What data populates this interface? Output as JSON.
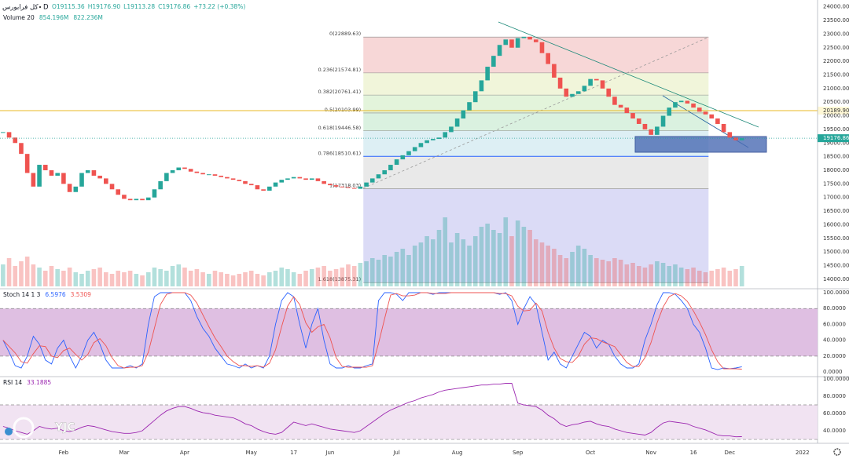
{
  "header": {
    "symbol": "کل فرابورس",
    "interval": "D",
    "ohlc": [
      "O19115.36",
      "H19176.90",
      "L19113.28",
      "C19176.86",
      "+73.22 (+0.38%)"
    ],
    "watermark": "YJC"
  },
  "chart_data": [
    {
      "type": "candlestick",
      "up_color": "#26a69a",
      "down_color": "#ef5350",
      "values": [
        19400,
        19200,
        19000,
        18600,
        17900,
        17400,
        18200,
        18000,
        17800,
        17900,
        17500,
        17200,
        17400,
        17900,
        18000,
        17800,
        17700,
        17500,
        17300,
        17100,
        16950,
        16900,
        16950,
        16900,
        17000,
        17300,
        17600,
        17900,
        18000,
        18100,
        18050,
        17950,
        17900,
        17850,
        17850,
        17800,
        17750,
        17700,
        17650,
        17600,
        17500,
        17450,
        17300,
        17250,
        17400,
        17550,
        17650,
        17700,
        17750,
        17700,
        17650,
        17700,
        17600,
        17500,
        17450,
        17400,
        17380,
        17350,
        17320,
        17400,
        17550,
        17700,
        17850,
        18000,
        18200,
        18400,
        18550,
        18700,
        18850,
        19000,
        19100,
        19150,
        19200,
        19400,
        19600,
        19900,
        20200,
        20500,
        20900,
        21300,
        21800,
        22200,
        22600,
        22800,
        22500,
        22850,
        22900,
        22800,
        22700,
        22300,
        21900,
        21400,
        21000,
        20700,
        20800,
        20900,
        21100,
        21350,
        21300,
        21000,
        20700,
        20400,
        20300,
        20100,
        19900,
        19700,
        19500,
        19300,
        19600,
        20000,
        20300,
        20500,
        20550,
        20450,
        20300,
        20150,
        20050,
        19900,
        19700,
        19400,
        19200,
        19100,
        19176.86
      ],
      "last_price_label": "19176.86",
      "xlim": [
        -0.5,
        134.5
      ],
      "xticks": [
        {
          "value": 10,
          "label": "Feb"
        },
        {
          "value": 20,
          "label": "Mar"
        },
        {
          "value": 30,
          "label": "Apr"
        },
        {
          "value": 41,
          "label": "May"
        },
        {
          "value": 48,
          "label": "17"
        },
        {
          "value": 54,
          "label": "Jun"
        },
        {
          "value": 65,
          "label": "Jul"
        },
        {
          "value": 75,
          "label": "Aug"
        },
        {
          "value": 85,
          "label": "Sep"
        },
        {
          "value": 97,
          "label": "Oct"
        },
        {
          "value": 107,
          "label": "Nov"
        },
        {
          "value": 114,
          "label": "16"
        },
        {
          "value": 120,
          "label": "Dec"
        },
        {
          "value": 132,
          "label": "2022"
        }
      ],
      "ylim": [
        13650,
        24250
      ],
      "yticks": [
        {
          "value": 14000,
          "label": "14000.00"
        },
        {
          "value": 14500,
          "label": "14500.00"
        },
        {
          "value": 15000,
          "label": "15000.00"
        },
        {
          "value": 15500,
          "label": "15500.00"
        },
        {
          "value": 16000,
          "label": "16000.00"
        },
        {
          "value": 16500,
          "label": "16500.00"
        },
        {
          "value": 17000,
          "label": "17000.00"
        },
        {
          "value": 17500,
          "label": "17500.00"
        },
        {
          "value": 18000,
          "label": "18000.00"
        },
        {
          "value": 18500,
          "label": "18500.00"
        },
        {
          "value": 19000,
          "label": "19000.00"
        },
        {
          "value": 19500,
          "label": "19500.00"
        },
        {
          "value": 20000,
          "label": "20000.00"
        },
        {
          "value": 20500,
          "label": "20500.00"
        },
        {
          "value": 21000,
          "label": "21000.00"
        },
        {
          "value": 21500,
          "label": "21500.00"
        },
        {
          "value": 22000,
          "label": "22000.00"
        },
        {
          "value": 22500,
          "label": "22500.00"
        },
        {
          "value": 23000,
          "label": "23000.00"
        },
        {
          "value": 23500,
          "label": "23500.00"
        },
        {
          "value": 24000,
          "label": "24000.00"
        }
      ],
      "price_line": {
        "value": 20189.9,
        "label": "20189.90",
        "color": "#e8b923"
      },
      "fib_levels": [
        {
          "value": 22889.63,
          "label": "0(22889.63)",
          "color": "#f4c9c9"
        },
        {
          "value": 21574.81,
          "label": "0.236(21574.81)",
          "color": "#ecf2cd"
        },
        {
          "value": 20761.41,
          "label": "0.382(20761.41)",
          "color": "#d9f0cf"
        },
        {
          "value": 20103.99,
          "label": "0.5(20103.99)",
          "color": "#cdecd6"
        },
        {
          "value": 19446.58,
          "label": "0.618(19446.58)",
          "color": "#d2e9f0"
        },
        {
          "value": 18510.61,
          "label": "0.786(18510.61)",
          "color": "#e2e2e2"
        },
        {
          "value": 17318.03,
          "label": "1(17318.03)",
          "color": "#cfcff3"
        },
        {
          "value": 13875.31,
          "label": "1.618(13875.31)",
          "color": "#cfcff3"
        }
      ],
      "volume": {
        "name": "Volume 20",
        "legend": [
          "854.196M",
          "822.236M"
        ],
        "ylim": [
          0,
          3000
        ],
        "values": [
          700,
          900,
          650,
          800,
          950,
          700,
          600,
          500,
          650,
          550,
          500,
          600,
          450,
          400,
          500,
          550,
          600,
          450,
          400,
          500,
          450,
          500,
          400,
          350,
          450,
          600,
          550,
          500,
          650,
          700,
          600,
          500,
          550,
          450,
          400,
          500,
          450,
          400,
          350,
          400,
          450,
          500,
          400,
          350,
          450,
          500,
          600,
          550,
          450,
          400,
          500,
          550,
          600,
          650,
          500,
          550,
          600,
          700,
          650,
          750,
          800,
          900,
          850,
          1000,
          950,
          1100,
          1200,
          1000,
          1300,
          1400,
          1600,
          1500,
          1800,
          2200,
          1400,
          1700,
          1500,
          1300,
          1600,
          1900,
          2000,
          1800,
          1700,
          2200,
          1600,
          2100,
          1900,
          1800,
          1500,
          1400,
          1300,
          1200,
          1000,
          900,
          1100,
          1300,
          1200,
          1000,
          900,
          850,
          800,
          900,
          850,
          700,
          750,
          650,
          600,
          700,
          800,
          750,
          650,
          700,
          600,
          550,
          600,
          500,
          450,
          500,
          550,
          600,
          500,
          550,
          650
        ]
      }
    },
    {
      "type": "line",
      "title": "Stoch 14 1 3",
      "ylim": [
        -5.9,
        105
      ],
      "band": [
        20,
        80
      ],
      "band_color": "#dcb8df",
      "yticks": [
        {
          "value": 100,
          "label": "100.0000"
        },
        {
          "value": 80,
          "label": "80.0000"
        },
        {
          "value": 60,
          "label": "60.0000"
        },
        {
          "value": 40,
          "label": "40.0000"
        },
        {
          "value": 20,
          "label": "20.0000"
        },
        {
          "value": 0,
          "label": "0.0000"
        }
      ],
      "series": [
        {
          "name": "6.5976",
          "color": "#2962ff",
          "values": [
            40,
            25,
            8,
            5,
            20,
            45,
            35,
            15,
            10,
            30,
            40,
            20,
            5,
            20,
            40,
            50,
            35,
            15,
            5,
            5,
            5,
            8,
            5,
            10,
            60,
            95,
            100,
            100,
            100,
            100,
            100,
            90,
            70,
            55,
            45,
            30,
            20,
            10,
            8,
            5,
            10,
            5,
            8,
            5,
            20,
            60,
            90,
            100,
            95,
            60,
            30,
            60,
            80,
            40,
            10,
            5,
            5,
            8,
            5,
            5,
            8,
            10,
            90,
            100,
            100,
            98,
            90,
            100,
            100,
            100,
            100,
            98,
            100,
            100,
            100,
            100,
            100,
            100,
            100,
            100,
            100,
            100,
            98,
            100,
            90,
            60,
            80,
            95,
            85,
            50,
            15,
            25,
            10,
            5,
            20,
            35,
            50,
            45,
            30,
            40,
            35,
            20,
            10,
            5,
            5,
            10,
            40,
            60,
            85,
            100,
            100,
            98,
            90,
            80,
            60,
            50,
            30,
            5,
            3,
            5,
            4,
            5,
            6.5976
          ]
        },
        {
          "name": "3.5309",
          "color": "#ef5350",
          "values": [
            40,
            32,
            24,
            13,
            11,
            23,
            33,
            32,
            20,
            18,
            27,
            30,
            22,
            15,
            22,
            37,
            42,
            33,
            18,
            8,
            5,
            6,
            6,
            8,
            25,
            55,
            85,
            98,
            100,
            100,
            100,
            97,
            87,
            72,
            57,
            43,
            32,
            20,
            13,
            8,
            8,
            7,
            8,
            6,
            11,
            28,
            57,
            83,
            95,
            85,
            62,
            50,
            57,
            60,
            43,
            18,
            7,
            6,
            6,
            6,
            6,
            8,
            36,
            67,
            97,
            99,
            96,
            96,
            97,
            100,
            100,
            99,
            99,
            99,
            100,
            100,
            100,
            100,
            100,
            100,
            100,
            100,
            99,
            99,
            96,
            83,
            77,
            78,
            87,
            77,
            50,
            30,
            17,
            13,
            12,
            20,
            35,
            43,
            42,
            38,
            35,
            32,
            22,
            12,
            7,
            7,
            18,
            37,
            62,
            82,
            95,
            99,
            96,
            89,
            77,
            63,
            47,
            28,
            13,
            4,
            4,
            4,
            3.5309
          ]
        }
      ]
    },
    {
      "type": "line",
      "title": "RSI 14",
      "ylim": [
        25.5,
        102.7
      ],
      "band": [
        30,
        70
      ],
      "band_color": "#efe0f1",
      "yticks": [
        {
          "value": 100,
          "label": "100.0000"
        },
        {
          "value": 80,
          "label": "80.0000"
        },
        {
          "value": 60,
          "label": "60.0000"
        },
        {
          "value": 40,
          "label": "40.0000"
        }
      ],
      "series": [
        {
          "name": "33.1885",
          "color": "#9c27b0",
          "values": [
            45,
            43,
            40,
            38,
            36,
            40,
            45,
            43,
            42,
            43,
            40,
            39,
            41,
            44,
            46,
            45,
            43,
            41,
            39,
            38,
            37,
            37,
            38,
            40,
            46,
            52,
            58,
            63,
            66,
            68,
            68,
            66,
            63,
            61,
            60,
            58,
            57,
            56,
            55,
            52,
            48,
            46,
            42,
            39,
            37,
            36,
            38,
            44,
            50,
            48,
            46,
            48,
            46,
            44,
            42,
            41,
            40,
            39,
            38,
            40,
            45,
            50,
            55,
            60,
            64,
            67,
            70,
            73,
            75,
            78,
            80,
            82,
            85,
            87,
            88,
            89,
            90,
            91,
            92,
            93,
            93,
            94,
            94,
            95,
            95,
            72,
            70,
            69,
            68,
            64,
            58,
            54,
            48,
            45,
            47,
            48,
            50,
            51,
            48,
            46,
            45,
            42,
            40,
            38,
            37,
            36,
            35,
            38,
            44,
            49,
            51,
            50,
            49,
            48,
            45,
            43,
            41,
            38,
            35,
            34,
            34,
            33,
            33.1885
          ]
        }
      ]
    }
  ]
}
